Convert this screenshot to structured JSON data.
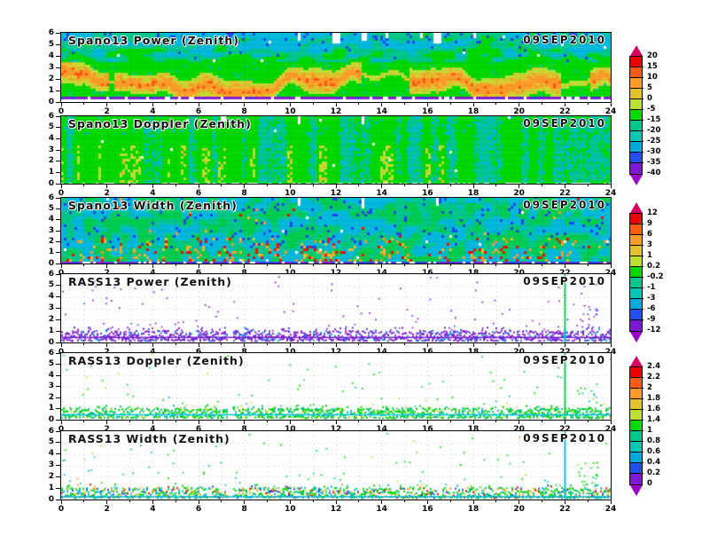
{
  "figure": {
    "background": "#ffffff"
  },
  "axes": {
    "x_ticks": [
      "0",
      "2",
      "4",
      "6",
      "8",
      "10",
      "12",
      "14",
      "16",
      "18",
      "20",
      "22",
      "24"
    ],
    "y_ticks": [
      "0",
      "1",
      "2",
      "3",
      "4",
      "5",
      "6"
    ]
  },
  "panels": [
    {
      "name": "spano13-power",
      "title": "Spano13 Power (Zenith)",
      "date": "09SEP2010",
      "kind": "spano_power",
      "seed": 101
    },
    {
      "name": "spano13-doppler",
      "title": "Spano13 Doppler (Zenith)",
      "date": "09SEP2010",
      "kind": "spano_doppler",
      "seed": 202
    },
    {
      "name": "spano13-width",
      "title": "Spano13 Width (Zenith)",
      "date": "09SEP2010",
      "kind": "spano_width",
      "seed": 303
    },
    {
      "name": "rass13-power",
      "title": "RASS13 Power (Zenith)",
      "date": "09SEP2010",
      "kind": "rass_power",
      "seed": 404
    },
    {
      "name": "rass13-doppler",
      "title": "RASS13 Doppler (Zenith)",
      "date": "09SEP2010",
      "kind": "rass_doppler",
      "seed": 505
    },
    {
      "name": "rass13-width",
      "title": "RASS13 Width (Zenith)",
      "date": "09SEP2010",
      "kind": "rass_width",
      "seed": 606
    }
  ],
  "colorbars": [
    {
      "name": "colorbar-top",
      "tick_labels": [
        "20",
        "15",
        "10",
        "5",
        "0",
        "-5",
        "-15",
        "-20",
        "-25",
        "-30",
        "-35",
        "-40"
      ]
    },
    {
      "name": "colorbar-middle",
      "tick_labels": [
        "12",
        "9",
        "6",
        "3",
        "1",
        "0.2",
        "-0.2",
        "-1",
        "-3",
        "-6",
        "-9",
        "-12"
      ]
    },
    {
      "name": "colorbar-bottom",
      "tick_labels": [
        "2.4",
        "2.2",
        "2",
        "1.8",
        "1.6",
        "1.4",
        "1",
        "0.8",
        "0.6",
        "0.4",
        "0.2",
        "0"
      ]
    }
  ],
  "colorbar_style": {
    "segment_colors": [
      "#ee0000",
      "#ff5a14",
      "#ff9b28",
      "#e2c22e",
      "#bcdf35",
      "#00d800",
      "#00c88c",
      "#00c8b4",
      "#00aadc",
      "#2050f0",
      "#7d19d2"
    ],
    "top_arrow": "#d40064",
    "bottom_arrow": "#9b00c8"
  },
  "palette": {
    "green": "#00d800",
    "green_alt": "#00cd50",
    "teal": "#00c88c",
    "cyan": "#00b9dc",
    "blue": "#2346f0",
    "yellow_green": "#bcdf35",
    "mustard": "#e2c22e",
    "orange": "#ff9b28",
    "orange_red": "#ff5a14",
    "red": "#e61400",
    "purple": "#8a1fd4",
    "grid_dot": "#c6c6c6",
    "rass_purple": "#7a1fd0",
    "rass_violet": "#9a30e0",
    "rass_blue": "#3a58f8",
    "rass_lightblue": "#00a0f0",
    "vline_green": "#00cc44",
    "vline_cyan": "#00c0e0",
    "vline_blue": "#00b4e6"
  },
  "chart_data": {
    "type": "heatmap",
    "title": "Wind profiler / RASS quicklook, six stacked time-height panels",
    "x": {
      "label": "",
      "range": [
        0,
        24
      ],
      "ticks": [
        0,
        2,
        4,
        6,
        8,
        10,
        12,
        14,
        16,
        18,
        20,
        22,
        24
      ]
    },
    "y": {
      "label": "",
      "range": [
        0,
        6
      ],
      "ticks": [
        0,
        1,
        2,
        3,
        4,
        5,
        6
      ]
    },
    "grid": true,
    "panels": [
      {
        "title": "Spano13 Power (Zenith)",
        "date": "09SEP2010",
        "colorbar": "top",
        "pattern": "green field; cyan/teal with blue specks above ~3.5; wavy yellow-mustard-orange layer between ~1 and 3; purple dotted line near 0.4; white data-gap notches near hours 10.4, 12, 13.2, 14.2, 16.4"
      },
      {
        "title": "Spano13 Doppler (Zenith)",
        "date": "09SEP2010",
        "colorbar": "top",
        "pattern": "mostly green with vertical teal/cyan streaks and yellow-green streaks below ~3; white gaps along bottom row"
      },
      {
        "title": "Spano13 Width (Zenith)",
        "date": "09SEP2010",
        "colorbar": "middle",
        "pattern": "teal-cyan field with green patches below ~2; red/orange/yellow speckles concentrated 0.5-2, strongest hours 4-14; blue-purple dashes at bottom"
      },
      {
        "title": "RASS13 Power (Zenith)",
        "date": "09SEP2010",
        "colorbar": "middle",
        "pattern": "white field; dense purple/blue speckle band below ~1 with solid purple line near 0.5; sparse purple dots aloft; green vertical line at hour 22"
      },
      {
        "title": "RASS13 Doppler (Zenith)",
        "date": "09SEP2010",
        "colorbar": "bottom",
        "pattern": "white field; dense green speckle band below ~1 with cyan line near 0.5; sparse green/yellow dots aloft; green vertical line at hour 22"
      },
      {
        "title": "RASS13 Width (Zenith)",
        "date": "09SEP2010",
        "colorbar": "bottom",
        "pattern": "white field; dense green/cyan band with red-orange spots below ~1; cyan line near 0.3; sparse dots aloft; cyan vertical line at hour 22"
      }
    ],
    "colorbars": {
      "top": {
        "tick_labels": [
          20,
          15,
          10,
          5,
          0,
          -5,
          -15,
          -20,
          -25,
          -30,
          -35,
          -40
        ]
      },
      "middle": {
        "tick_labels": [
          12,
          9,
          6,
          3,
          1,
          0.2,
          -0.2,
          -1,
          -3,
          -6,
          -9,
          -12
        ]
      },
      "bottom": {
        "tick_labels": [
          2.4,
          2.2,
          2,
          1.8,
          1.6,
          1.4,
          1,
          0.8,
          0.6,
          0.4,
          0.2,
          0
        ]
      }
    },
    "legend_position": "right"
  }
}
